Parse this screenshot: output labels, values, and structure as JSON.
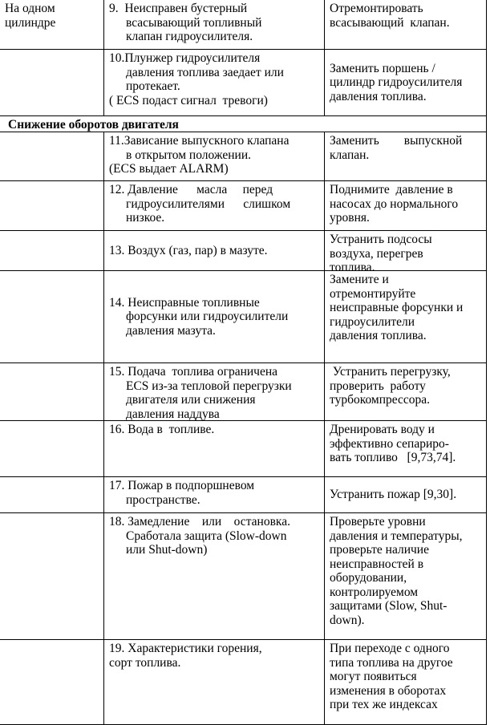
{
  "rows": [
    {
      "col1": [
        "На одном",
        "цилиндре"
      ],
      "cause": [
        "9.  Неисправен бустерный",
        "всасывающий топливный",
        "клапан гидроусилителя."
      ],
      "remedy": [
        "Отремонтировать",
        "всасывающий  клапан."
      ]
    },
    {
      "col1": [],
      "cause": [
        "10.Плунжер гидроусилителя",
        "давления топлива заедает или",
        "протекает.",
        "( ECS подаст сигнал  тревоги)"
      ],
      "remedy": [
        "Заменить поршень /",
        "цилиндр гидроусилителя",
        "давления топлива."
      ]
    },
    {
      "section": "Снижение оборотов двигателя"
    },
    {
      "col1": [],
      "cause": [
        "11.Зависание выпускного клапана",
        "в открытом положении.",
        "(ECS выдает ALARM)"
      ],
      "remedy": [
        "Заменить        выпускной",
        "клапан."
      ]
    },
    {
      "col1": [],
      "cause": [
        "12. Давление      масла     перед",
        "гидроусилителями      слишком",
        "низкое."
      ],
      "remedy": [
        "Поднимите  давление в",
        "насосах до нормального",
        "уровня."
      ]
    },
    {
      "col1": [],
      "cause": [
        "13. Воздух (газ, пар) в мазуте."
      ],
      "remedy": [
        "Устранить подсосы",
        "воздуха, перегрев",
        "топлива."
      ]
    },
    {
      "col1": [],
      "cause": [
        "14. Неисправные топливные",
        "форсунки или гидроусилители",
        "давления мазута."
      ],
      "remedy": [
        "Замените и",
        "отремонтируйте",
        "неисправные форсунки и",
        "гидроусилители",
        "давления топлива."
      ]
    },
    {
      "col1": [],
      "cause": [
        "15. Подача  топлива ограничена",
        "ECS из-за тепловой перегрузки",
        "двигателя или снижения",
        "давления наддува"
      ],
      "remedy": [
        " Устранить перегрузку,",
        "проверить  работу",
        "турбокомпрессора."
      ]
    },
    {
      "col1": [],
      "cause": [
        "16. Вода в  топливе."
      ],
      "remedy": [
        "Дренировать воду и",
        "эффективно сепариро-",
        "вать топливо   [9,73,74]."
      ]
    },
    {
      "col1": [],
      "cause": [
        "17. Пожар в подпоршневом",
        "пространстве."
      ],
      "remedy": [
        "Устранить пожар [9,30]."
      ]
    },
    {
      "col1": [],
      "cause": [
        "18. Замедление    или    остановка.",
        "Сработала защита (Slow-down",
        "или Shut-down)"
      ],
      "remedy": [
        "Проверьте уровни",
        "давления и температуры,",
        "проверьте наличие",
        "неисправностей в",
        "оборудовании,",
        "контролируемом",
        "защитами (Slow, Shut-",
        "down)."
      ]
    },
    {
      "col1": [],
      "cause": [
        "19. Характеристики горения,",
        "сорт топлива."
      ],
      "remedy": [
        "При переходе с одного",
        "типа топлива на другое",
        "могут появиться",
        "изменения в оборотах",
        "при тех же индексах"
      ]
    }
  ]
}
